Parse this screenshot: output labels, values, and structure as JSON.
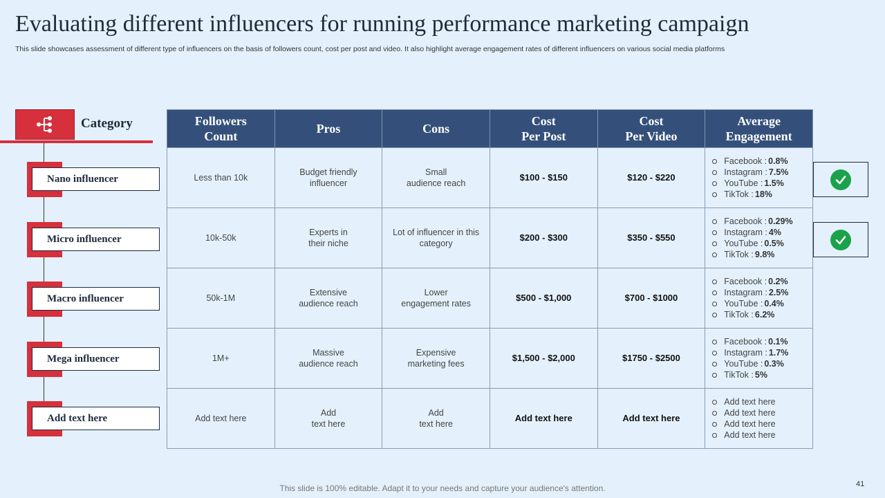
{
  "title": "Evaluating different influencers for running performance marketing campaign",
  "subtitle": "This slide showcases assessment of different type  of influencers on the basis of followers count, cost per post and video. It also highlight average engagement rates of different influencers on various social media platforms",
  "category": {
    "label": "Category",
    "icon": "hierarchy-icon",
    "items": [
      "Nano influencer",
      "Micro influencer",
      "Macro influencer",
      "Mega influencer",
      "Add text here"
    ]
  },
  "table": {
    "headers": [
      [
        "Followers",
        "Count"
      ],
      [
        "Pros"
      ],
      [
        "Cons"
      ],
      [
        "Cost",
        "Per Post"
      ],
      [
        "Cost",
        "Per Video"
      ],
      [
        "Average",
        "Engagement"
      ]
    ],
    "rows": [
      {
        "followers": "Less than 10k",
        "pros": [
          "Budget friendly",
          "influencer"
        ],
        "cons": [
          "Small",
          "audience reach"
        ],
        "cost_post": "$100 - $150",
        "cost_video": "$120 - $220",
        "engagement": [
          {
            "label": "Facebook : ",
            "value": "0.8%"
          },
          {
            "label": "Instagram  : ",
            "value": "7.5%"
          },
          {
            "label": "YouTube  :",
            "value": "1.5%"
          },
          {
            "label": "TikTok  : ",
            "value": "18%"
          }
        ]
      },
      {
        "followers": "10k-50k",
        "pros": [
          "Experts in",
          "their niche"
        ],
        "cons": [
          "Lot of influencer  in this",
          "category"
        ],
        "cost_post": "$200 - $300",
        "cost_video": "$350 - $550",
        "engagement": [
          {
            "label": "Facebook : ",
            "value": "0.29%"
          },
          {
            "label": "Instagram  : ",
            "value": "4%"
          },
          {
            "label": "YouTube  : ",
            "value": "0.5%"
          },
          {
            "label": "TikTok  : ",
            "value": "9.8%"
          }
        ]
      },
      {
        "followers": "50k-1M",
        "pros": [
          "Extensive",
          "audience reach"
        ],
        "cons": [
          "Lower",
          "engagement  rates"
        ],
        "cost_post": "$500 - $1,000",
        "cost_video": "$700 - $1000",
        "engagement": [
          {
            "label": "Facebook : ",
            "value": "0.2%"
          },
          {
            "label": "Instagram  : ",
            "value": "2.5%"
          },
          {
            "label": "YouTube  : ",
            "value": "0.4%"
          },
          {
            "label": "TikTok  : ",
            "value": "6.2%"
          }
        ]
      },
      {
        "followers": "1M+",
        "pros": [
          "Massive",
          "audience reach"
        ],
        "cons": [
          "Expensive",
          "marketing fees"
        ],
        "cost_post": "$1,500 - $2,000",
        "cost_video": "$1750 - $2500",
        "engagement": [
          {
            "label": "Facebook : ",
            "value": "0.1%"
          },
          {
            "label": "Instagram  : ",
            "value": "1.7%"
          },
          {
            "label": "YouTube  : ",
            "value": "0.3%"
          },
          {
            "label": "TikTok  : ",
            "value": "5%"
          }
        ]
      },
      {
        "followers": "Add text here",
        "pros": [
          "Add",
          "text here"
        ],
        "cons": [
          "Add",
          "text here"
        ],
        "cost_post": "Add text here",
        "cost_video": "Add text here",
        "engagement": [
          {
            "label": "Add text here",
            "value": ""
          },
          {
            "label": "Add text here",
            "value": ""
          },
          {
            "label": "Add text here",
            "value": ""
          },
          {
            "label": "Add text here",
            "value": ""
          }
        ]
      }
    ]
  },
  "checks": [
    "check-icon",
    "check-icon"
  ],
  "footer": "This slide is 100% editable. Adapt it to your needs and capture your audience's attention.",
  "page_number": "41",
  "colors": {
    "accent_red": "#d6303c",
    "header_blue": "#34507a",
    "background": "#e4f1fc",
    "check_green": "#1aa34a"
  }
}
